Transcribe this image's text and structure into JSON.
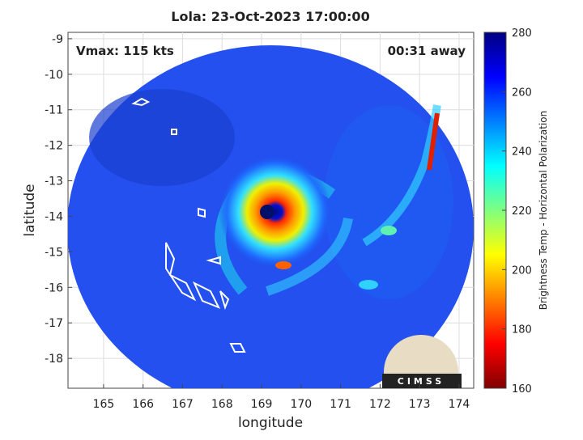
{
  "title": "Lola: 23-Oct-2023 17:00:00",
  "annotations": {
    "vmax": "Vmax: 115 kts",
    "time_away": "00:31 away"
  },
  "map": {
    "xlabel": "longitude",
    "ylabel": "latitude",
    "xlim": [
      164.1,
      174.37
    ],
    "ylim": [
      -18.84,
      -8.82
    ],
    "xticks": [
      165,
      166,
      167,
      168,
      169,
      170,
      171,
      172,
      173,
      174
    ],
    "yticks": [
      -9,
      -10,
      -11,
      -12,
      -13,
      -14,
      -15,
      -16,
      -17,
      -18
    ],
    "grid": true
  },
  "colorbar": {
    "label": "Brightness Temp - Horizontal Polarization",
    "clim": [
      160,
      280
    ],
    "ticks": [
      160,
      180,
      200,
      220,
      240,
      260,
      280
    ]
  },
  "logo": {
    "text": "CIMSS"
  }
}
